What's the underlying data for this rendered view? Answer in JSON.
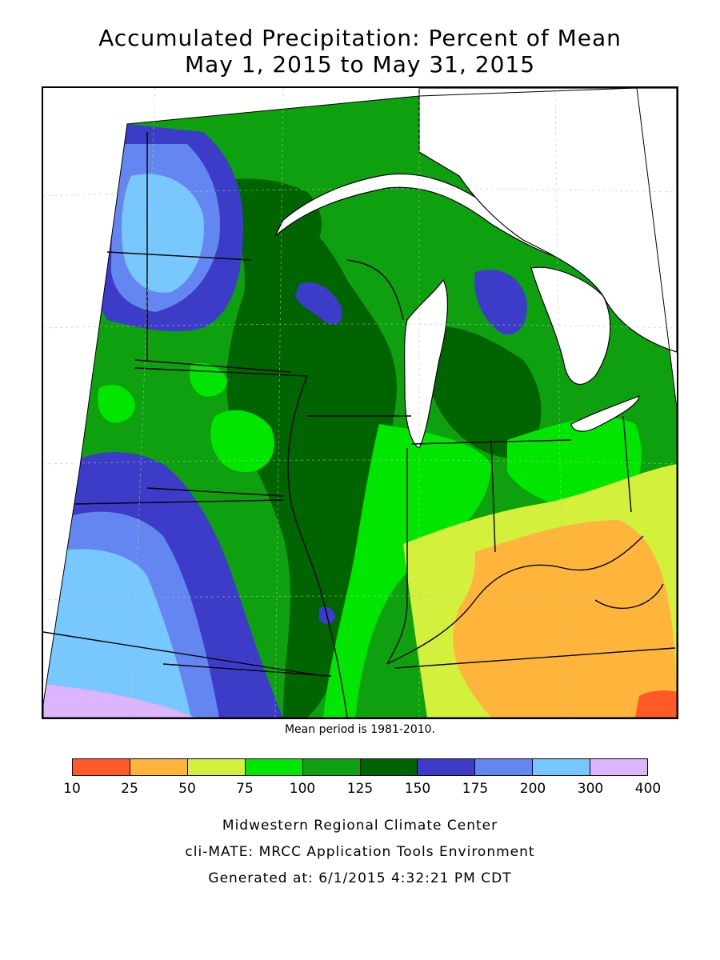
{
  "title_line1": "Accumulated Precipitation: Percent of Mean",
  "title_line2": "May 1, 2015 to May 31, 2015",
  "mean_note": "Mean period is 1981-2010.",
  "legend": {
    "ticks": [
      "10",
      "25",
      "50",
      "75",
      "100",
      "125",
      "150",
      "175",
      "200",
      "300",
      "400"
    ],
    "colors": [
      "#ff5a28",
      "#ffb43c",
      "#d2f03c",
      "#00e600",
      "#0fa00f",
      "#006400",
      "#3c3cc8",
      "#6486f0",
      "#78c8ff",
      "#dcb4ff"
    ]
  },
  "map": {
    "background_color": "#0fa00f",
    "lake_color": "#ffffff",
    "line_color": "#000000",
    "grid_style": "dashed-light"
  },
  "footer": {
    "line1": "Midwestern Regional Climate Center",
    "line2": "cli-MATE: MRCC Application Tools Environment",
    "line3": "Generated at: 6/1/2015 4:32:21 PM CDT"
  }
}
